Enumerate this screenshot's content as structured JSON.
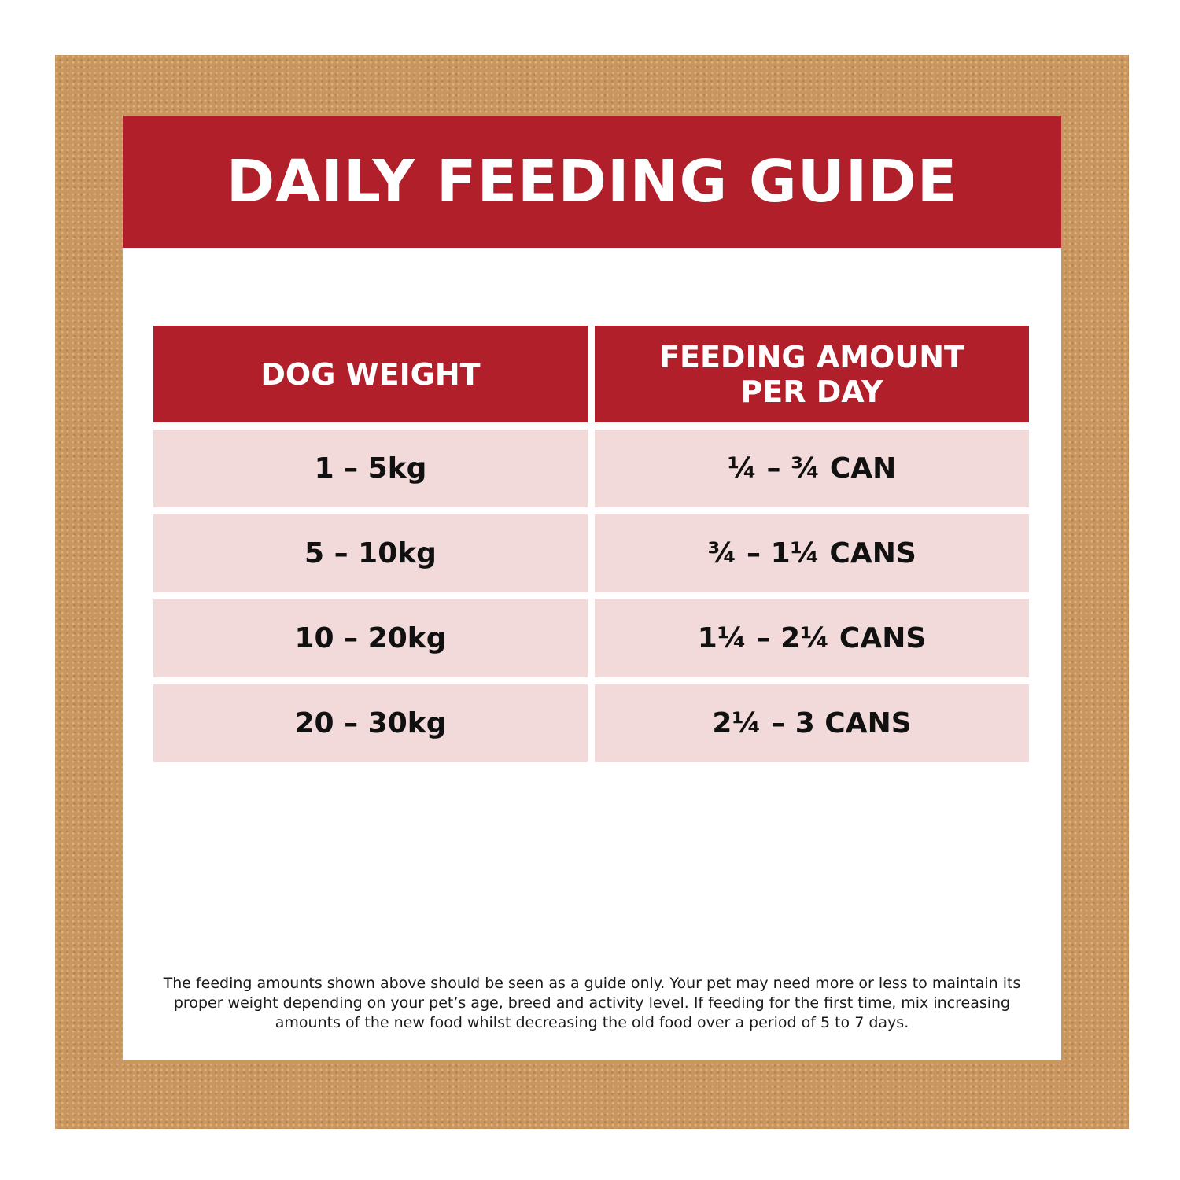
{
  "title": "DAILY FEEDING GUIDE",
  "table": {
    "headers": {
      "weight": "DOG WEIGHT",
      "amount_line1": "FEEDING AMOUNT",
      "amount_line2": "PER DAY"
    },
    "rows": [
      {
        "weight": "1 – 5kg",
        "amount": "¼ – ¾ CAN"
      },
      {
        "weight": "5 – 10kg",
        "amount": "¾ – 1¼ CANS"
      },
      {
        "weight": "10 – 20kg",
        "amount": "1¼ – 2¼ CANS"
      },
      {
        "weight": "20 – 30kg",
        "amount": "2¼ – 3 CANS"
      }
    ]
  },
  "footnote": "The feeding amounts shown above should be seen as a guide only. Your pet may need more or less to maintain its proper weight depending on your pet’s age, breed and activity level. If feeding for the first time, mix increasing amounts of the new food whilst decreasing the old food over a period of 5 to 7 days.",
  "colors": {
    "accent_red": "#b01f2a",
    "row_pink": "#f2d9da",
    "frame_tan": "#c9965f"
  }
}
